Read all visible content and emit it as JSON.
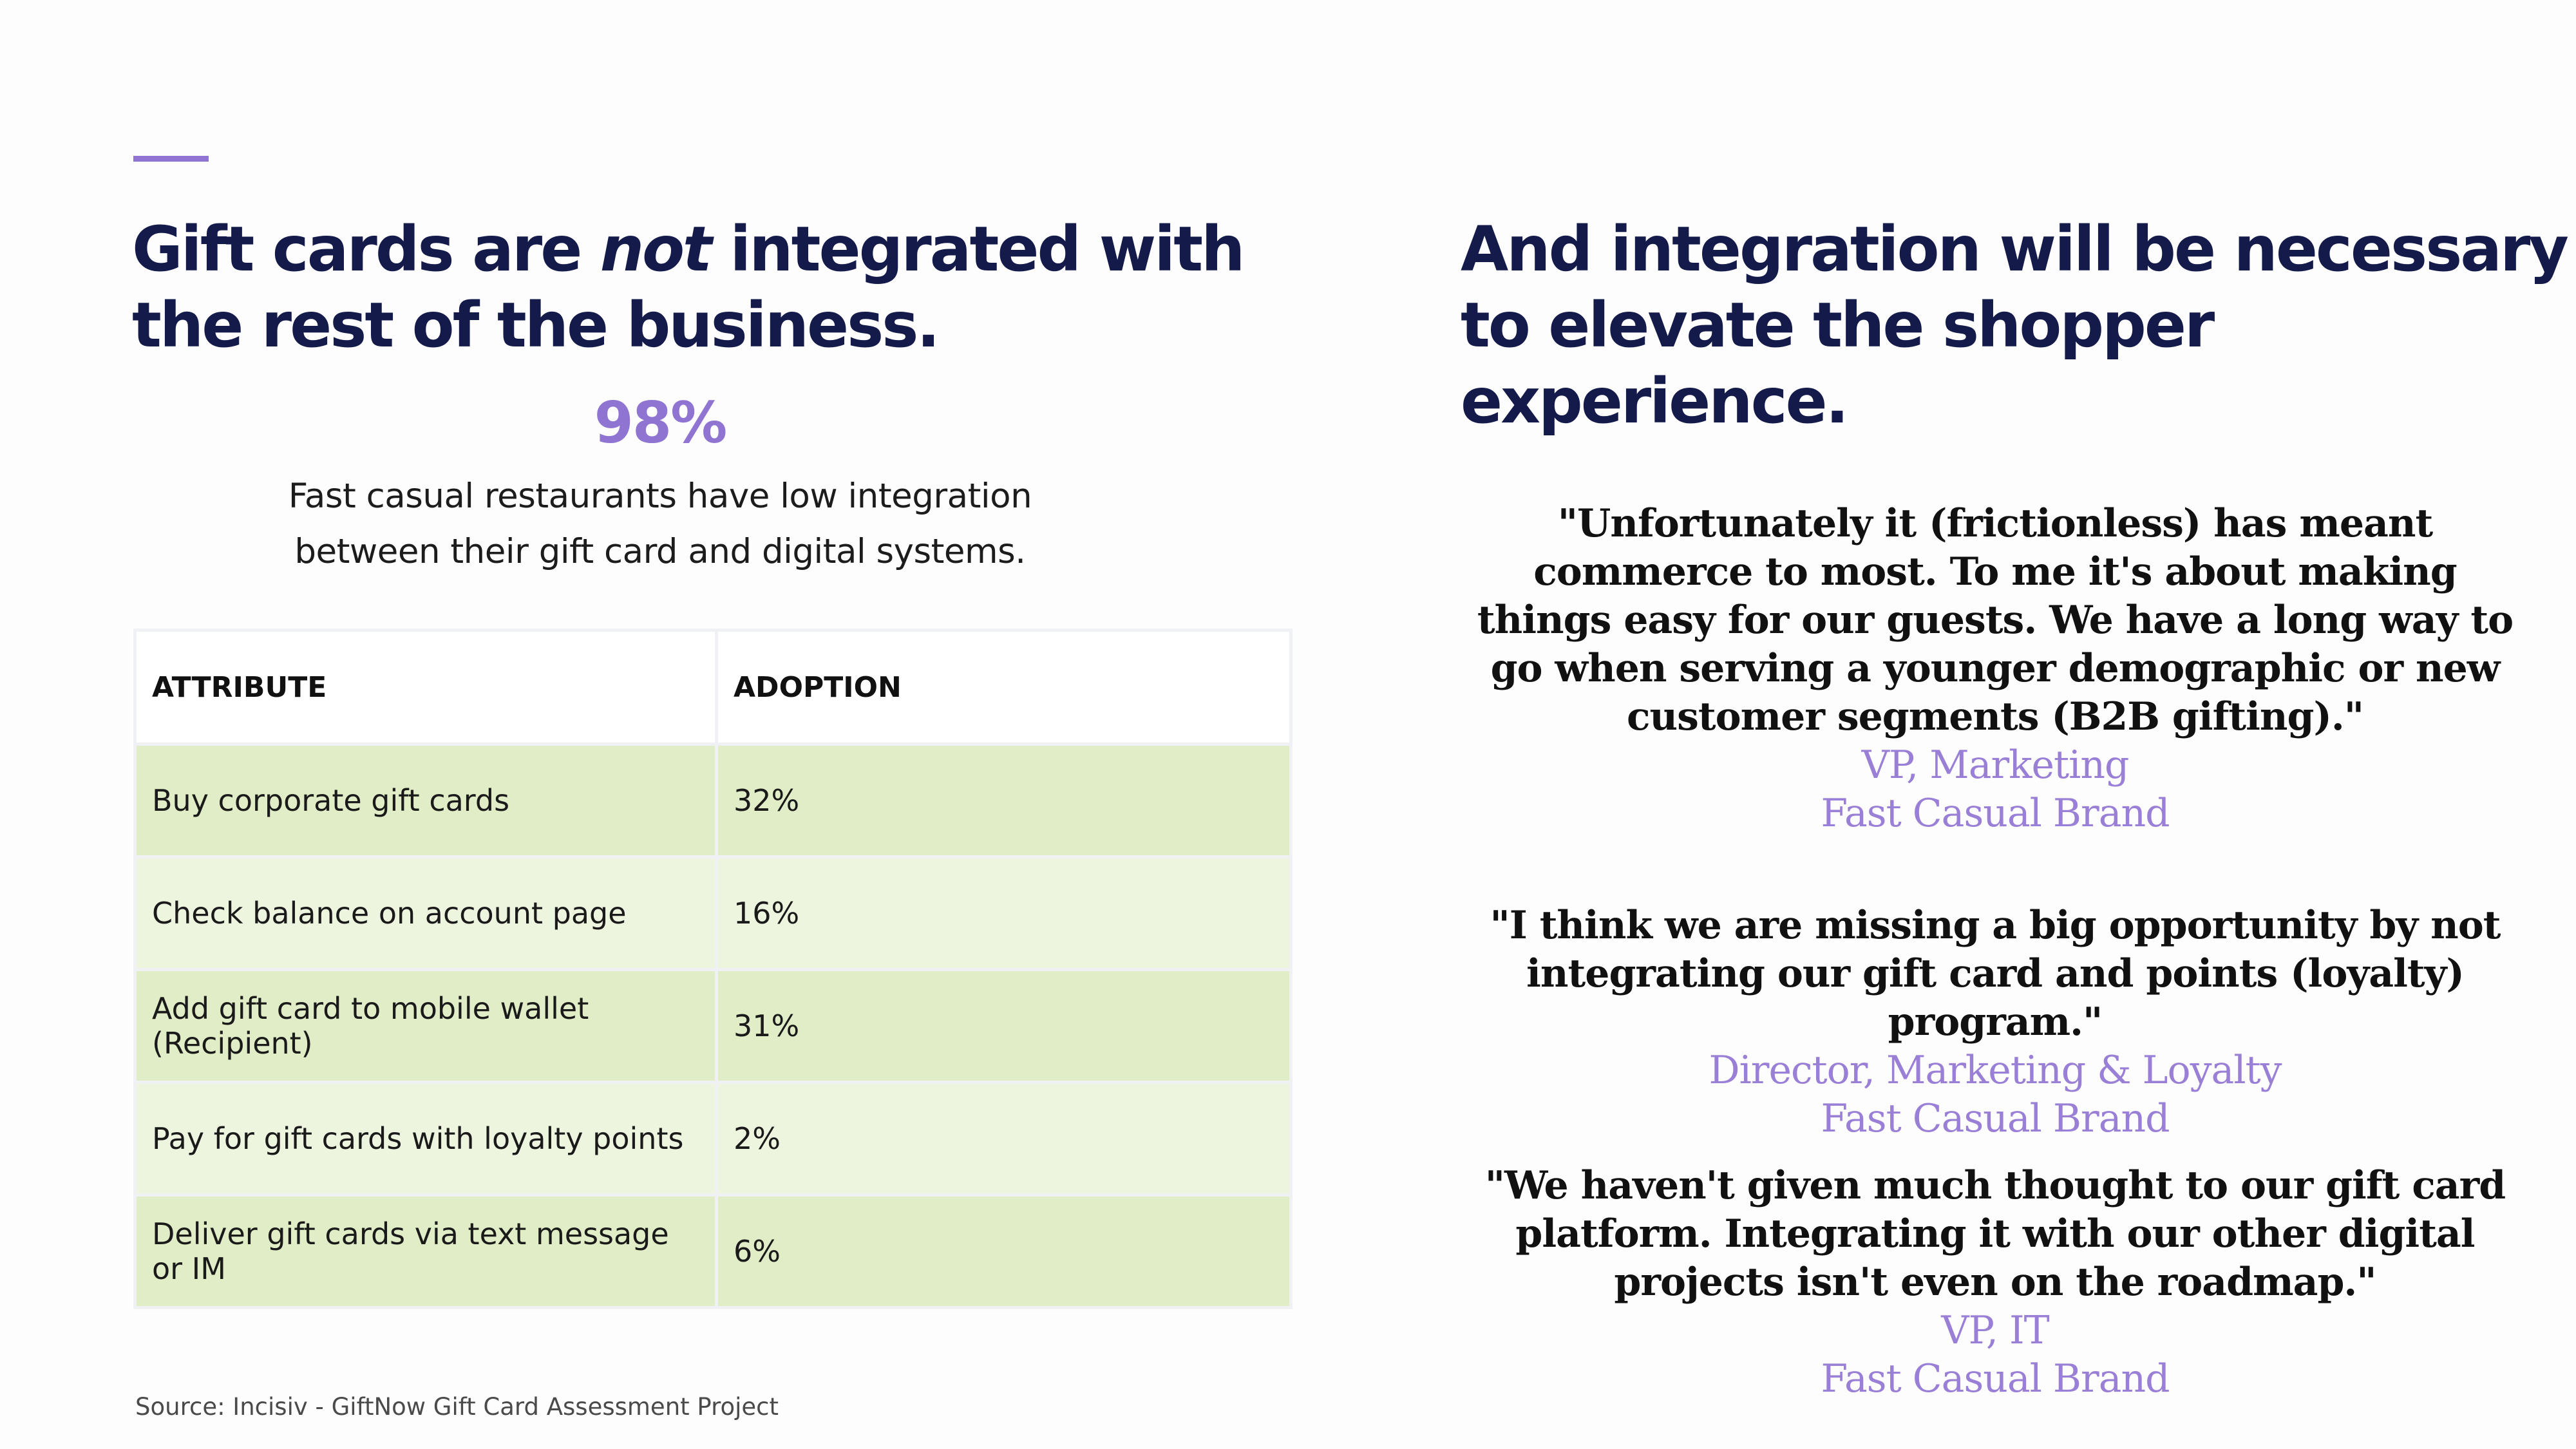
{
  "left": {
    "title_part1": "Gift cards are ",
    "title_emphasis": "not",
    "title_part2": " integrated with the rest of the business.",
    "stat": {
      "value": "98%",
      "line1": "Fast casual restaurants have low integration",
      "line2": "between their gift card and digital systems."
    },
    "table": {
      "headers": [
        "ATTRIBUTE",
        "ADOPTION"
      ],
      "rows": [
        {
          "attribute": "Buy corporate gift cards",
          "adoption": "32%"
        },
        {
          "attribute": "Check balance on account page",
          "adoption": "16%"
        },
        {
          "attribute": "Add gift card to mobile wallet (Recipient)",
          "adoption": "31%"
        },
        {
          "attribute": "Pay for gift cards with loyalty points",
          "adoption": "2%"
        },
        {
          "attribute": "Deliver gift cards via text message or IM",
          "adoption": "6%"
        }
      ]
    },
    "source": "Source: Incisiv - GiftNow Gift Card Assessment Project"
  },
  "right": {
    "title": "And integration will be necessary to elevate the shopper experience.",
    "quotes": [
      {
        "text": "\"Unfortunately it (frictionless) has meant  commerce to most. To me it's about making things easy for our guests. We have a long way to go when serving a younger demographic or new customer segments (B2B gifting).\"",
        "role": "VP, Marketing",
        "org": "Fast Casual Brand"
      },
      {
        "text": "\"I think we are missing a big opportunity by not integrating our gift card and points (loyalty) program.\"",
        "role": "Director, Marketing & Loyalty",
        "org": "Fast Casual Brand"
      },
      {
        "text": "\"We haven't given much thought to our gift card platform. Integrating it with our other digital projects isn't even on the roadmap.\"",
        "role": "VP, IT",
        "org": "Fast Casual Brand"
      }
    ]
  },
  "colors": {
    "heading": "#141a4a",
    "accent": "#8f74d2",
    "row_dark": "#e0edc6",
    "row_light": "#eef5df"
  }
}
